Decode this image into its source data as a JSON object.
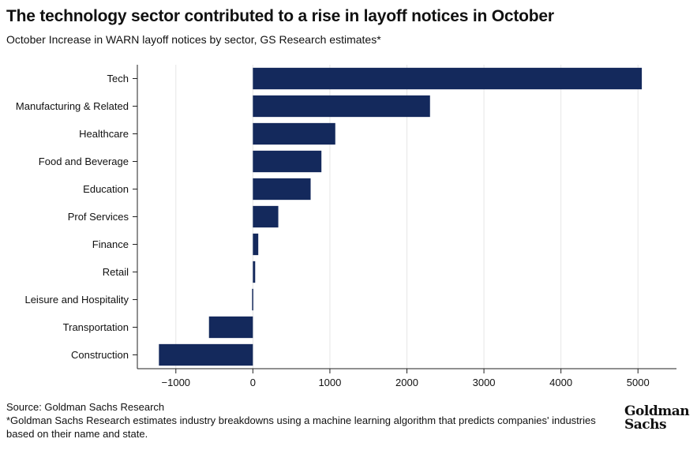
{
  "title": "The technology sector contributed to a rise in layoff notices in October",
  "subtitle": "October Increase in WARN layoff notices by sector, GS Research estimates*",
  "footer": {
    "source": "Source: Goldman Sachs Research",
    "note": "*Goldman Sachs Research estimates industry breakdowns using a machine learning algorithm that predicts companies' industries based on their name and state."
  },
  "logo": {
    "line1": "Goldman",
    "line2": "Sachs"
  },
  "colors": {
    "bar": "#14295c",
    "axis": "#222222",
    "grid": "#e6e6e6"
  },
  "chart_data": {
    "type": "bar",
    "orientation": "horizontal",
    "categories": [
      "Tech",
      "Manufacturing & Related",
      "Healthcare",
      "Food and Beverage",
      "Education",
      "Prof Services",
      "Finance",
      "Retail",
      "Leisure and Hospitality",
      "Transportation",
      "Construction"
    ],
    "values": [
      5050,
      2300,
      1070,
      890,
      750,
      330,
      70,
      30,
      -10,
      -570,
      -1220
    ],
    "xticks": [
      -1000,
      0,
      1000,
      2000,
      3000,
      4000,
      5000
    ],
    "xlim": [
      -1500,
      5500
    ],
    "grid": "vertical"
  }
}
